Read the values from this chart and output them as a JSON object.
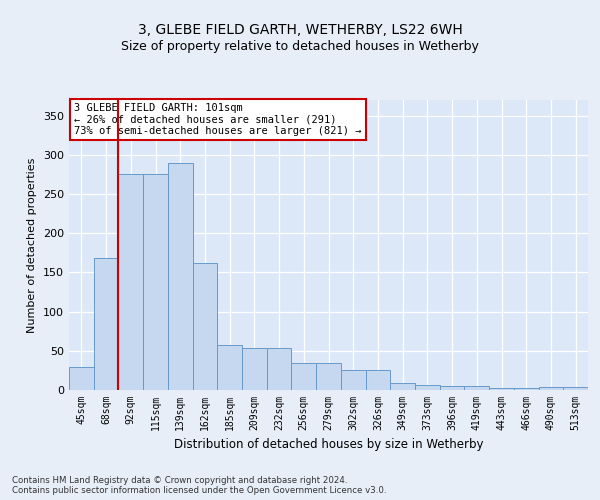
{
  "title1": "3, GLEBE FIELD GARTH, WETHERBY, LS22 6WH",
  "title2": "Size of property relative to detached houses in Wetherby",
  "xlabel": "Distribution of detached houses by size in Wetherby",
  "ylabel": "Number of detached properties",
  "categories": [
    "45sqm",
    "68sqm",
    "92sqm",
    "115sqm",
    "139sqm",
    "162sqm",
    "185sqm",
    "209sqm",
    "232sqm",
    "256sqm",
    "279sqm",
    "302sqm",
    "326sqm",
    "349sqm",
    "373sqm",
    "396sqm",
    "419sqm",
    "443sqm",
    "466sqm",
    "490sqm",
    "513sqm"
  ],
  "values": [
    29,
    168,
    275,
    275,
    290,
    162,
    57,
    53,
    53,
    35,
    35,
    25,
    25,
    9,
    6,
    5,
    5,
    3,
    3,
    4,
    4
  ],
  "bar_color": "#c5d8f0",
  "bar_edge_color": "#6699cc",
  "vline_x": 2,
  "vline_color": "#cc0000",
  "annotation_text": "3 GLEBE FIELD GARTH: 101sqm\n← 26% of detached houses are smaller (291)\n73% of semi-detached houses are larger (821) →",
  "annotation_box_color": "#ffffff",
  "annotation_box_edge": "#cc0000",
  "ylim": [
    0,
    370
  ],
  "yticks": [
    0,
    50,
    100,
    150,
    200,
    250,
    300,
    350
  ],
  "footer": "Contains HM Land Registry data © Crown copyright and database right 2024.\nContains public sector information licensed under the Open Government Licence v3.0.",
  "bg_color": "#dce8f8",
  "fig_bg_color": "#e8eef8",
  "title1_fontsize": 10,
  "title2_fontsize": 9,
  "xlabel_fontsize": 8.5,
  "ylabel_fontsize": 8
}
